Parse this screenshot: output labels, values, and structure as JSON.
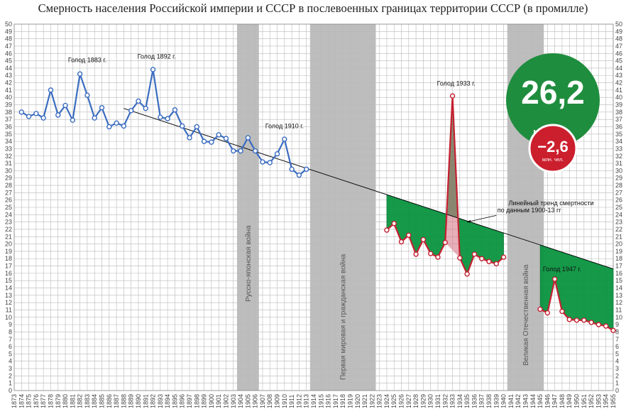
{
  "chart_data": {
    "type": "line",
    "title": "Смерность населения Российской империи и СССР в послевоенных границах территории СССР (в промилле)",
    "xlabel": "",
    "ylabel": "",
    "xlim": [
      1873,
      1955
    ],
    "ylim": [
      0,
      50
    ],
    "grid": true,
    "colors": {
      "imperial_line": "#3a6cc0",
      "soviet_line": "#c42030",
      "loss_fill": "#0a9440",
      "war_band": "#bdbdbd",
      "trend_line": "#000000",
      "badge_big": "#1f8d3e",
      "badge_small": "#cc1f2e"
    },
    "series": [
      {
        "key": "imperial",
        "x": [
          1874,
          1875,
          1876,
          1877,
          1878,
          1879,
          1880,
          1881,
          1882,
          1883,
          1884,
          1885,
          1886,
          1887,
          1888,
          1889,
          1890,
          1891,
          1892,
          1893,
          1894,
          1895,
          1896,
          1897,
          1898,
          1899,
          1900,
          1901,
          1902,
          1903,
          1904,
          1905,
          1906,
          1907,
          1908,
          1909,
          1910,
          1911,
          1912,
          1913
        ],
        "y": [
          38.0,
          37.4,
          37.8,
          37.2,
          41.0,
          37.6,
          38.9,
          36.9,
          43.2,
          40.3,
          37.2,
          38.6,
          36.0,
          36.5,
          36.1,
          38.2,
          39.5,
          38.5,
          43.8,
          37.3,
          37.1,
          38.3,
          36.1,
          34.5,
          36.0,
          34.0,
          33.9,
          34.9,
          34.4,
          32.7,
          32.7,
          34.5,
          32.7,
          31.2,
          31.1,
          32.3,
          34.3,
          30.2,
          29.4,
          30.2
        ]
      },
      {
        "key": "soviet_prewar",
        "x": [
          1924,
          1925,
          1926,
          1927,
          1928,
          1929,
          1930,
          1931,
          1932,
          1933,
          1934,
          1935,
          1936,
          1937,
          1938,
          1939,
          1940
        ],
        "y": [
          21.9,
          22.8,
          20.3,
          21.2,
          18.6,
          20.6,
          18.7,
          18.2,
          20.2,
          40.2,
          18.1,
          15.9,
          18.6,
          18.0,
          17.6,
          17.3,
          18.2
        ]
      },
      {
        "key": "soviet_postwar",
        "x": [
          1945,
          1946,
          1947,
          1948,
          1949,
          1950,
          1951,
          1952,
          1953,
          1954,
          1955
        ],
        "y": [
          11.1,
          10.6,
          15.2,
          10.8,
          9.7,
          9.6,
          9.6,
          9.3,
          9.0,
          8.8,
          8.2
        ]
      }
    ],
    "trend": {
      "x1": 1888,
      "y1": 38.5,
      "x2": 1955,
      "y2": 16.6
    },
    "war_periods": [
      {
        "from": 1904,
        "to": 1906,
        "label": "Русско-японская война"
      },
      {
        "from": 1914,
        "to": 1922,
        "label": "Первая мировая и гражданская война"
      },
      {
        "from": 1941,
        "to": 1945,
        "label": "Великая Отечественная война"
      }
    ],
    "annotations": {
      "famine_1883": "Голод 1883 г.",
      "famine_1892": "Голод 1892 г.",
      "famine_1910": "Голод 1910 г.",
      "famine_1933": "Голод 1933 г.",
      "famine_1947": "Голод 1947 г.",
      "trend_line1": "Линейный тренд смертности",
      "trend_line2": "по данным 1900-13 гг"
    },
    "badges": {
      "big_value": "26,2",
      "big_unit": "млн. чел.",
      "small_value": "−2,6",
      "small_unit": "млн. чел."
    }
  }
}
